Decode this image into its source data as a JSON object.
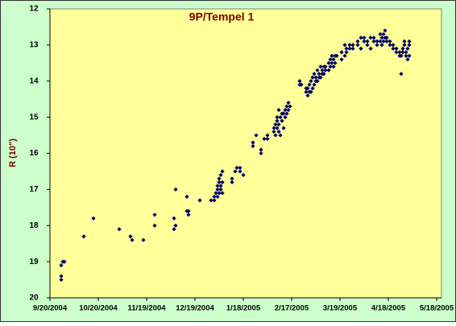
{
  "chart_data": {
    "type": "scatter",
    "title": "9P/Tempel 1",
    "y_label": "R (10\")",
    "y_inverted": true,
    "color": "#000066",
    "xlim": [
      "9/20/2004",
      "5/18/2005"
    ],
    "xticks": [
      "9/20/2004",
      "10/20/2004",
      "11/19/2004",
      "12/19/2004",
      "1/18/2005",
      "2/17/2005",
      "3/19/2005",
      "4/18/2005",
      "5/18/2005"
    ],
    "ylim": [
      12,
      20
    ],
    "yticks": [
      12,
      13,
      14,
      15,
      16,
      17,
      18,
      19,
      20
    ],
    "x": [
      "9/27/2004",
      "9/27/2004",
      "9/27/2004",
      "9/28/2004",
      "9/29/2004",
      "10/11/2004",
      "10/17/2004",
      "11/2/2004",
      "11/9/2004",
      "11/10/2004",
      "11/17/2004",
      "11/24/2004",
      "11/24/2004",
      "12/6/2004",
      "12/6/2004",
      "12/7/2004",
      "12/7/2004",
      "12/14/2004",
      "12/14/2004",
      "12/15/2004",
      "12/15/2004",
      "12/22/2004",
      "12/29/2004",
      "12/31/2004",
      "12/31/2004",
      "1/1/2005",
      "1/2/2005",
      "1/2/2005",
      "1/2/2005",
      "1/3/2005",
      "1/3/2005",
      "1/3/2005",
      "1/4/2005",
      "1/4/2005",
      "1/4/2005",
      "1/5/2005",
      "1/5/2005",
      "1/5/2005",
      "1/11/2005",
      "1/11/2005",
      "1/13/2005",
      "1/14/2005",
      "1/16/2005",
      "1/16/2005",
      "1/18/2005",
      "1/24/2005",
      "1/24/2005",
      "1/26/2005",
      "1/29/2005",
      "1/29/2005",
      "1/31/2005",
      "2/2/2005",
      "2/2/2005",
      "2/6/2005",
      "2/6/2005",
      "2/7/2005",
      "2/7/2005",
      "2/8/2005",
      "2/8/2005",
      "2/8/2005",
      "2/9/2005",
      "2/9/2005",
      "2/9/2005",
      "2/10/2005",
      "2/10/2005",
      "2/11/2005",
      "2/11/2005",
      "2/12/2005",
      "2/12/2005",
      "2/13/2005",
      "2/13/2005",
      "2/14/2005",
      "2/14/2005",
      "2/15/2005",
      "2/15/2005",
      "2/16/2005",
      "2/22/2005",
      "2/22/2005",
      "2/23/2005",
      "2/26/2005",
      "2/26/2005",
      "2/27/2005",
      "2/27/2005",
      "2/28/2005",
      "2/28/2005",
      "3/1/2005",
      "3/1/2005",
      "3/2/2005",
      "3/2/2005",
      "3/3/2005",
      "3/3/2005",
      "3/4/2005",
      "3/4/2005",
      "3/5/2005",
      "3/5/2005",
      "3/6/2005",
      "3/6/2005",
      "3/7/2005",
      "3/7/2005",
      "3/8/2005",
      "3/8/2005",
      "3/9/2005",
      "3/9/2005",
      "3/10/2005",
      "3/10/2005",
      "3/12/2005",
      "3/12/2005",
      "3/13/2005",
      "3/13/2005",
      "3/14/2005",
      "3/14/2005",
      "3/15/2005",
      "3/15/2005",
      "3/16/2005",
      "3/16/2005",
      "3/17/2005",
      "3/20/2005",
      "3/20/2005",
      "3/22/2005",
      "3/22/2005",
      "3/23/2005",
      "3/23/2005",
      "3/25/2005",
      "3/25/2005",
      "3/27/2005",
      "3/27/2005",
      "3/30/2005",
      "3/30/2005",
      "4/1/2005",
      "4/1/2005",
      "4/3/2005",
      "4/3/2005",
      "4/5/2005",
      "4/5/2005",
      "4/7/2005",
      "4/7/2005",
      "4/9/2005",
      "4/9/2005",
      "4/11/2005",
      "4/11/2005",
      "4/13/2005",
      "4/13/2005",
      "4/14/2005",
      "4/14/2005",
      "4/15/2005",
      "4/15/2005",
      "4/16/2005",
      "4/16/2005",
      "4/17/2005",
      "4/17/2005",
      "4/19/2005",
      "4/19/2005",
      "4/21/2005",
      "4/21/2005",
      "4/23/2005",
      "4/23/2005",
      "4/25/2005",
      "4/25/2005",
      "4/26/2005",
      "4/26/2005",
      "4/27/2005",
      "4/27/2005",
      "4/28/2005",
      "4/28/2005",
      "4/29/2005",
      "4/29/2005",
      "4/30/2005",
      "4/30/2005",
      "5/1/2005",
      "5/1/2005",
      "5/1/2005"
    ],
    "values": [
      19.4,
      19.5,
      19.1,
      19.0,
      19.0,
      18.3,
      17.8,
      18.1,
      18.3,
      18.4,
      18.4,
      18.0,
      17.7,
      18.1,
      17.8,
      18.0,
      17.0,
      17.2,
      17.6,
      17.7,
      17.6,
      17.3,
      17.3,
      17.3,
      17.2,
      17.1,
      17.0,
      17.2,
      16.9,
      16.8,
      17.1,
      16.7,
      16.6,
      16.9,
      17.0,
      16.5,
      16.8,
      17.1,
      16.7,
      16.8,
      16.5,
      16.4,
      16.4,
      16.5,
      16.6,
      15.7,
      15.8,
      15.5,
      16.0,
      15.9,
      15.6,
      15.6,
      15.5,
      15.4,
      15.3,
      15.2,
      15.5,
      15.0,
      15.3,
      15.1,
      14.8,
      15.2,
      15.4,
      15.0,
      15.5,
      14.9,
      15.1,
      14.9,
      15.3,
      14.8,
      15.0,
      14.7,
      14.9,
      14.6,
      14.8,
      14.7,
      14.0,
      14.1,
      14.1,
      14.3,
      14.2,
      14.4,
      14.2,
      14.1,
      14.3,
      14.0,
      14.3,
      13.9,
      14.2,
      13.8,
      14.1,
      13.9,
      14.0,
      13.7,
      14.0,
      13.8,
      13.9,
      13.6,
      13.9,
      13.7,
      13.8,
      13.6,
      13.8,
      13.6,
      13.7,
      13.5,
      13.7,
      13.6,
      13.4,
      13.5,
      13.3,
      13.4,
      13.6,
      13.3,
      13.5,
      13.3,
      13.2,
      13.4,
      13.0,
      13.3,
      13.1,
      13.2,
      13.0,
      13.1,
      13.0,
      13.1,
      12.9,
      13.0,
      12.8,
      13.1,
      12.8,
      12.9,
      13.0,
      12.9,
      12.8,
      13.1,
      12.9,
      12.8,
      12.9,
      13.0,
      12.7,
      12.9,
      12.8,
      13.0,
      12.7,
      12.9,
      12.6,
      12.8,
      12.8,
      12.9,
      12.9,
      13.0,
      13.1,
      13.0,
      13.2,
      13.1,
      13.3,
      13.2,
      13.8,
      13.3,
      13.2,
      13.1,
      12.9,
      13.0,
      13.3,
      13.2,
      13.1,
      13.4,
      12.9,
      13.3,
      13.0
    ]
  }
}
